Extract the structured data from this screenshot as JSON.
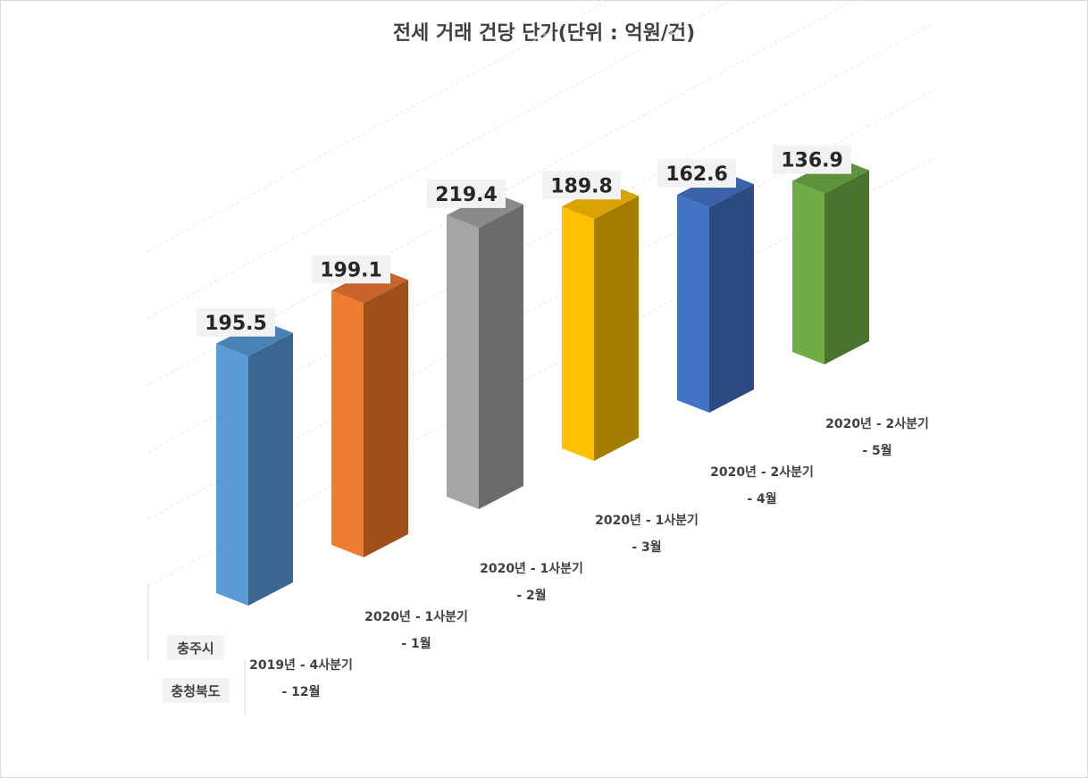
{
  "chart_data": {
    "type": "bar",
    "title": "전세 거래 건당 단가(단위 : 억원/건)",
    "categories": [
      [
        "2019년 - 4사분기",
        "- 12월"
      ],
      [
        "2020년 - 1사분기",
        "- 1월"
      ],
      [
        "2020년 - 1사분기",
        "- 2월"
      ],
      [
        "2020년 - 1사분기",
        "- 3월"
      ],
      [
        "2020년 - 2사분기",
        "- 4월"
      ],
      [
        "2020년 - 2사분기",
        "- 5월"
      ]
    ],
    "series_labels": [
      "충주시",
      "충청북도"
    ],
    "values": [
      195.5,
      199.1,
      219.4,
      189.8,
      162.6,
      136.9
    ],
    "value_labels": [
      "195.5",
      "199.1",
      "219.4",
      "189.8",
      "162.6",
      "136.9"
    ],
    "colors": [
      {
        "front": "#5b9bd5",
        "side": "#3a6791",
        "top": "#4a82b8"
      },
      {
        "front": "#ed7d31",
        "side": "#9e4f1c",
        "top": "#c9652a"
      },
      {
        "front": "#a5a5a5",
        "side": "#6b6b6b",
        "top": "#8a8a8a"
      },
      {
        "front": "#ffc000",
        "side": "#a67c00",
        "top": "#d9a300"
      },
      {
        "front": "#4472c4",
        "side": "#2b4a82",
        "top": "#3a62a8"
      },
      {
        "front": "#70ad47",
        "side": "#4a742e",
        "top": "#5f933b"
      }
    ],
    "ylim": [
      0,
      250
    ],
    "grid": true,
    "view": "3d-perspective"
  }
}
